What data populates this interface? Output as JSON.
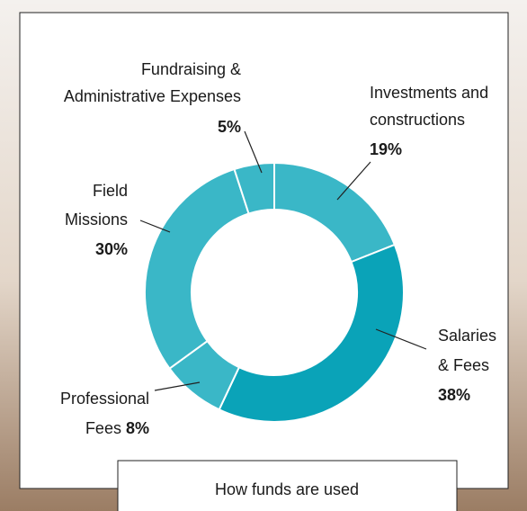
{
  "chart_data": {
    "type": "pie",
    "title": "How funds are used",
    "categories": [
      [
        "Investments and",
        "constructions"
      ],
      [
        "Salaries",
        "& Fees"
      ],
      [
        "Professional",
        "Fees"
      ],
      [
        "Field",
        "Missions"
      ],
      [
        "Fundraising &",
        "Administrative Expenses"
      ]
    ],
    "values": [
      19,
      38,
      8,
      30,
      5
    ],
    "value_labels": [
      "19%",
      "38%",
      "8%",
      "30%",
      "5%"
    ],
    "colors": [
      "#3ab7c7",
      "#0aa3b8",
      "#3ab7c7",
      "#3ab7c7",
      "#3ab7c7"
    ]
  }
}
